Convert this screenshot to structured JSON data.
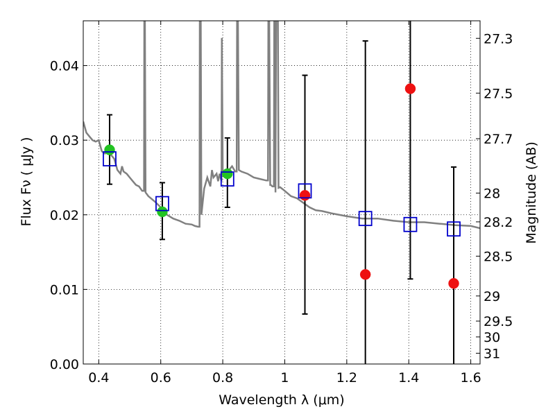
{
  "chart_data": {
    "type": "scatter",
    "xlabel": "Wavelength  λ (μm)",
    "ylabel": "Flux  Fν  ( μJy )",
    "y2label": "Magnitude (AB)",
    "xlim": [
      0.35,
      1.63
    ],
    "ylim": [
      0.0,
      0.046
    ],
    "x_ticks": [
      0.4,
      0.6,
      0.8,
      1.0,
      1.2,
      1.4,
      1.6
    ],
    "x_tick_labels": [
      "0.4",
      "0.6",
      "0.8",
      "1",
      "1.2",
      "1.4",
      "1.6"
    ],
    "y_ticks": [
      0.0,
      0.01,
      0.02,
      0.03,
      0.04
    ],
    "y_tick_labels": [
      "0.00",
      "0.01",
      "0.02",
      "0.03",
      "0.04"
    ],
    "y2_ticks": [
      "27.3",
      "27.5",
      "27.7",
      "28",
      "28.2",
      "28.5",
      "29",
      "29.5",
      "30",
      "31"
    ],
    "grid": true,
    "colors": {
      "model": "#808080",
      "green": "#22c322",
      "red": "#ee1111",
      "box": "#0000cc",
      "error": "#000000"
    },
    "series": [
      {
        "style": "line",
        "color": "#808080",
        "x": [
          0.35,
          0.36,
          0.37,
          0.38,
          0.39,
          0.4,
          0.41,
          0.42,
          0.43,
          0.44,
          0.45,
          0.46,
          0.47,
          0.475,
          0.48,
          0.49,
          0.5,
          0.51,
          0.52,
          0.53,
          0.54,
          0.546,
          0.547,
          0.549,
          0.551,
          0.56,
          0.58,
          0.6,
          0.62,
          0.64,
          0.66,
          0.68,
          0.7,
          0.71,
          0.72,
          0.725,
          0.726,
          0.729,
          0.731,
          0.74,
          0.75,
          0.76,
          0.765,
          0.77,
          0.78,
          0.785,
          0.79,
          0.796,
          0.797,
          0.8,
          0.81,
          0.82,
          0.83,
          0.84,
          0.845,
          0.846,
          0.849,
          0.852,
          0.86,
          0.88,
          0.9,
          0.92,
          0.94,
          0.946,
          0.947,
          0.95,
          0.953,
          0.955,
          0.96,
          0.965,
          0.966,
          0.968,
          0.97,
          0.972,
          0.974,
          0.976,
          0.978,
          0.98,
          0.985,
          1.0,
          1.02,
          1.04,
          1.06,
          1.08,
          1.1,
          1.12,
          1.15,
          1.2,
          1.25,
          1.3,
          1.35,
          1.4,
          1.45,
          1.5,
          1.55,
          1.6,
          1.63
        ],
        "y": [
          0.0325,
          0.031,
          0.0305,
          0.03,
          0.0298,
          0.03,
          0.0285,
          0.0282,
          0.0285,
          0.028,
          0.0275,
          0.026,
          0.0255,
          0.0265,
          0.0258,
          0.0255,
          0.025,
          0.0245,
          0.024,
          0.0238,
          0.0232,
          0.0232,
          0.046,
          0.046,
          0.023,
          0.0225,
          0.0218,
          0.021,
          0.02,
          0.0195,
          0.0192,
          0.0188,
          0.0187,
          0.0185,
          0.0184,
          0.0184,
          0.046,
          0.046,
          0.02,
          0.0235,
          0.025,
          0.0238,
          0.026,
          0.025,
          0.0255,
          0.0245,
          0.0255,
          0.0245,
          0.0437,
          0.0255,
          0.025,
          0.026,
          0.0265,
          0.0258,
          0.0258,
          0.046,
          0.046,
          0.026,
          0.0258,
          0.0255,
          0.025,
          0.0248,
          0.0246,
          0.0246,
          0.046,
          0.046,
          0.024,
          0.024,
          0.0238,
          0.0238,
          0.046,
          0.046,
          0.023,
          0.046,
          0.046,
          0.046,
          0.046,
          0.0236,
          0.0237,
          0.0232,
          0.0225,
          0.0222,
          0.0216,
          0.021,
          0.0206,
          0.0205,
          0.0202,
          0.0198,
          0.0195,
          0.0195,
          0.0192,
          0.019,
          0.019,
          0.0188,
          0.0186,
          0.0185,
          0.0182
        ]
      },
      {
        "style": "markers",
        "marker": "circle",
        "color": "#22c322",
        "x": [
          0.435,
          0.605,
          0.815
        ],
        "y": [
          0.0287,
          0.0204,
          0.0255
        ],
        "yerr_low": [
          0.0046,
          0.0037,
          0.0045
        ],
        "yerr_high": [
          0.0047,
          0.0039,
          0.0048
        ]
      },
      {
        "style": "markers",
        "marker": "circle",
        "color": "#ee1111",
        "x": [
          1.065,
          1.26,
          1.405,
          1.545
        ],
        "y": [
          0.0226,
          0.012,
          0.0369,
          0.0108
        ],
        "yerr_low": [
          0.0159,
          0.012,
          0.0255,
          0.0108
        ],
        "yerr_high": [
          0.0161,
          0.0313,
          0.0091,
          0.0156
        ]
      },
      {
        "style": "markers",
        "marker": "open-square",
        "color": "#0000cc",
        "x": [
          0.435,
          0.605,
          0.815,
          1.065,
          1.26,
          1.405,
          1.545
        ],
        "y": [
          0.0275,
          0.0215,
          0.0248,
          0.0232,
          0.0195,
          0.0187,
          0.0181
        ]
      }
    ]
  }
}
